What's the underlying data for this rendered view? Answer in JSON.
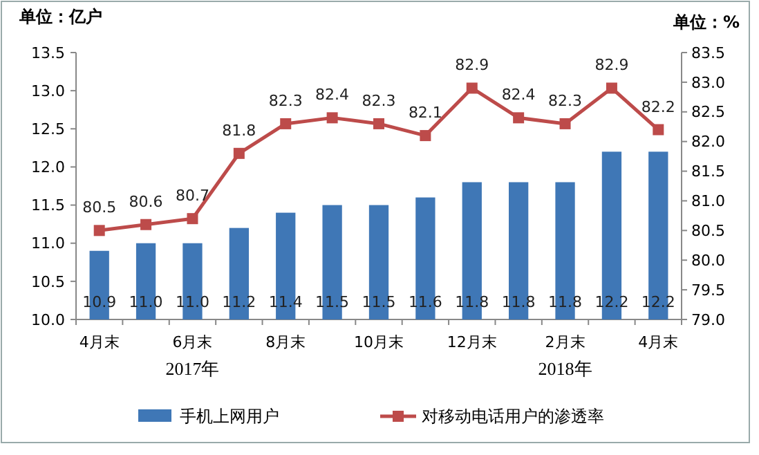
{
  "chart_data": {
    "type": "bar",
    "ylabel": "单位：亿户",
    "y2label": "单位：%",
    "categories": [
      "4月末",
      null,
      "6月末",
      null,
      "8月末",
      null,
      "10月末",
      null,
      "12月末",
      null,
      "2月末",
      null,
      "4月末"
    ],
    "series": [
      {
        "name": "手机上网用户",
        "color": "#3f77b6",
        "values": [
          10.9,
          11.0,
          11.0,
          11.2,
          11.4,
          11.5,
          11.5,
          11.6,
          11.8,
          11.8,
          11.8,
          12.2,
          12.2
        ],
        "value_labels": [
          "10.9",
          "11.0",
          "11.0",
          "11.2",
          "11.4",
          "11.5",
          "11.5",
          "11.6",
          "11.8",
          "11.8",
          "11.8",
          "12.2",
          "12.2"
        ]
      },
      {
        "name": "对移动电话用户的渗透率",
        "type": "line",
        "axis": "y2",
        "color": "#bd4b4a",
        "marker": "square",
        "values": [
          80.5,
          80.6,
          80.7,
          81.8,
          82.3,
          82.4,
          82.3,
          82.1,
          82.9,
          82.4,
          82.3,
          82.9,
          82.2
        ],
        "value_labels": [
          "80.5",
          "80.6",
          "80.7",
          "81.8",
          "82.3",
          "82.4",
          "82.3",
          "82.1",
          "82.9",
          "82.4",
          "82.3",
          "82.9",
          "82.2"
        ]
      }
    ],
    "ylim": [
      10,
      13.5
    ],
    "yticks": [
      {
        "value": 10,
        "label": "10.0"
      },
      10.5,
      {
        "value": 11,
        "label": "11.0"
      },
      11.5,
      {
        "value": 12,
        "label": "12.0"
      },
      12.5,
      {
        "value": 13,
        "label": "13.0"
      },
      13.5
    ],
    "y2lim": [
      79,
      83.5
    ],
    "y2ticks": [
      {
        "value": 79,
        "label": "79.0"
      },
      79.5,
      {
        "value": 80,
        "label": "80.0"
      },
      80.5,
      {
        "value": 81,
        "label": "81.0"
      },
      81.5,
      {
        "value": 82,
        "label": "82.0"
      },
      82.5,
      {
        "value": 83,
        "label": "83.0"
      },
      83.5
    ],
    "grid": false,
    "legend": "bottom",
    "annotations": [
      "2017年",
      "2018年"
    ]
  }
}
